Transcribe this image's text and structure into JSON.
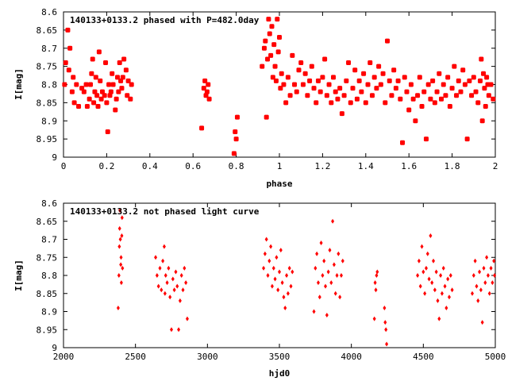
{
  "chart_data": [
    {
      "type": "scatter",
      "title": "140133+0133.2 phased with P=482.0day",
      "xlabel": "phase",
      "ylabel": "I[mag]",
      "xlim": [
        0,
        2
      ],
      "ylim": [
        8.6,
        9
      ],
      "y_inverted": true,
      "grid": false,
      "legend": "none",
      "marker_color": "#ff0000",
      "x_ticks": [
        "0",
        "0.2",
        "0.4",
        "0.6",
        "0.8",
        "1",
        "1.2",
        "1.4",
        "1.6",
        "1.8",
        "2"
      ],
      "y_ticks": [
        "8.6",
        "8.65",
        "8.7",
        "8.75",
        "8.8",
        "8.85",
        "8.9",
        "8.95",
        "9"
      ],
      "points": [
        [
          0.005,
          8.8
        ],
        [
          0.01,
          8.74
        ],
        [
          0.02,
          8.65
        ],
        [
          0.025,
          8.76
        ],
        [
          0.03,
          8.7
        ],
        [
          0.04,
          8.82
        ],
        [
          0.045,
          8.78
        ],
        [
          0.05,
          8.85
        ],
        [
          0.06,
          8.8
        ],
        [
          0.07,
          8.86
        ],
        [
          0.085,
          8.81
        ],
        [
          0.095,
          8.82
        ],
        [
          0.105,
          8.8
        ],
        [
          0.11,
          8.86
        ],
        [
          0.12,
          8.84
        ],
        [
          0.125,
          8.8
        ],
        [
          0.13,
          8.77
        ],
        [
          0.135,
          8.73
        ],
        [
          0.14,
          8.85
        ],
        [
          0.145,
          8.82
        ],
        [
          0.15,
          8.78
        ],
        [
          0.155,
          8.83
        ],
        [
          0.16,
          8.86
        ],
        [
          0.165,
          8.71
        ],
        [
          0.17,
          8.79
        ],
        [
          0.175,
          8.84
        ],
        [
          0.18,
          8.82
        ],
        [
          0.19,
          8.83
        ],
        [
          0.195,
          8.74
        ],
        [
          0.2,
          8.85
        ],
        [
          0.205,
          8.93
        ],
        [
          0.21,
          8.8
        ],
        [
          0.215,
          8.83
        ],
        [
          0.22,
          8.82
        ],
        [
          0.225,
          8.77
        ],
        [
          0.23,
          8.8
        ],
        [
          0.24,
          8.87
        ],
        [
          0.245,
          8.84
        ],
        [
          0.25,
          8.78
        ],
        [
          0.255,
          8.82
        ],
        [
          0.26,
          8.74
        ],
        [
          0.265,
          8.79
        ],
        [
          0.27,
          8.81
        ],
        [
          0.275,
          8.78
        ],
        [
          0.28,
          8.73
        ],
        [
          0.29,
          8.76
        ],
        [
          0.295,
          8.83
        ],
        [
          0.3,
          8.79
        ],
        [
          0.31,
          8.84
        ],
        [
          0.315,
          8.8
        ],
        [
          0.64,
          8.92
        ],
        [
          0.65,
          8.81
        ],
        [
          0.655,
          8.79
        ],
        [
          0.66,
          8.83
        ],
        [
          0.665,
          8.82
        ],
        [
          0.67,
          8.8
        ],
        [
          0.675,
          8.84
        ],
        [
          0.79,
          8.99
        ],
        [
          0.795,
          8.93
        ],
        [
          0.8,
          8.95
        ],
        [
          0.805,
          8.89
        ],
        [
          0.92,
          8.75
        ],
        [
          0.93,
          8.7
        ],
        [
          0.935,
          8.68
        ],
        [
          0.94,
          8.89
        ],
        [
          0.945,
          8.73
        ],
        [
          0.95,
          8.62
        ],
        [
          0.955,
          8.66
        ],
        [
          0.96,
          8.72
        ],
        [
          0.965,
          8.64
        ],
        [
          0.97,
          8.78
        ],
        [
          0.975,
          8.69
        ],
        [
          0.98,
          8.75
        ],
        [
          0.985,
          8.79
        ],
        [
          0.99,
          8.62
        ],
        [
          0.995,
          8.71
        ],
        [
          1.0,
          8.67
        ],
        [
          1.005,
          8.81
        ],
        [
          1.01,
          8.77
        ],
        [
          1.02,
          8.8
        ],
        [
          1.03,
          8.85
        ],
        [
          1.04,
          8.78
        ],
        [
          1.05,
          8.83
        ],
        [
          1.06,
          8.72
        ],
        [
          1.07,
          8.8
        ],
        [
          1.08,
          8.82
        ],
        [
          1.09,
          8.76
        ],
        [
          1.1,
          8.74
        ],
        [
          1.11,
          8.8
        ],
        [
          1.12,
          8.77
        ],
        [
          1.13,
          8.83
        ],
        [
          1.14,
          8.79
        ],
        [
          1.15,
          8.75
        ],
        [
          1.16,
          8.81
        ],
        [
          1.17,
          8.85
        ],
        [
          1.18,
          8.79
        ],
        [
          1.19,
          8.82
        ],
        [
          1.2,
          8.78
        ],
        [
          1.21,
          8.73
        ],
        [
          1.22,
          8.83
        ],
        [
          1.23,
          8.8
        ],
        [
          1.24,
          8.85
        ],
        [
          1.25,
          8.78
        ],
        [
          1.26,
          8.82
        ],
        [
          1.27,
          8.84
        ],
        [
          1.28,
          8.81
        ],
        [
          1.29,
          8.88
        ],
        [
          1.3,
          8.83
        ],
        [
          1.31,
          8.79
        ],
        [
          1.32,
          8.74
        ],
        [
          1.33,
          8.85
        ],
        [
          1.34,
          8.81
        ],
        [
          1.35,
          8.76
        ],
        [
          1.36,
          8.84
        ],
        [
          1.37,
          8.79
        ],
        [
          1.38,
          8.82
        ],
        [
          1.39,
          8.77
        ],
        [
          1.4,
          8.85
        ],
        [
          1.41,
          8.8
        ],
        [
          1.42,
          8.74
        ],
        [
          1.43,
          8.83
        ],
        [
          1.44,
          8.78
        ],
        [
          1.45,
          8.81
        ],
        [
          1.46,
          8.75
        ],
        [
          1.47,
          8.8
        ],
        [
          1.48,
          8.77
        ],
        [
          1.49,
          8.85
        ],
        [
          1.5,
          8.68
        ],
        [
          1.51,
          8.79
        ],
        [
          1.52,
          8.83
        ],
        [
          1.53,
          8.76
        ],
        [
          1.54,
          8.81
        ],
        [
          1.55,
          8.79
        ],
        [
          1.56,
          8.84
        ],
        [
          1.57,
          8.96
        ],
        [
          1.58,
          8.78
        ],
        [
          1.59,
          8.82
        ],
        [
          1.6,
          8.87
        ],
        [
          1.61,
          8.8
        ],
        [
          1.62,
          8.84
        ],
        [
          1.63,
          8.9
        ],
        [
          1.64,
          8.83
        ],
        [
          1.65,
          8.78
        ],
        [
          1.66,
          8.86
        ],
        [
          1.67,
          8.82
        ],
        [
          1.68,
          8.95
        ],
        [
          1.69,
          8.8
        ],
        [
          1.7,
          8.84
        ],
        [
          1.71,
          8.79
        ],
        [
          1.72,
          8.85
        ],
        [
          1.73,
          8.82
        ],
        [
          1.74,
          8.77
        ],
        [
          1.75,
          8.84
        ],
        [
          1.76,
          8.8
        ],
        [
          1.77,
          8.83
        ],
        [
          1.78,
          8.78
        ],
        [
          1.79,
          8.86
        ],
        [
          1.8,
          8.81
        ],
        [
          1.81,
          8.75
        ],
        [
          1.82,
          8.83
        ],
        [
          1.83,
          8.79
        ],
        [
          1.84,
          8.82
        ],
        [
          1.85,
          8.76
        ],
        [
          1.86,
          8.8
        ],
        [
          1.87,
          8.95
        ],
        [
          1.88,
          8.79
        ],
        [
          1.89,
          8.83
        ],
        [
          1.9,
          8.78
        ],
        [
          1.91,
          8.82
        ],
        [
          1.92,
          8.85
        ],
        [
          1.93,
          8.79
        ],
        [
          1.94,
          8.9
        ],
        [
          1.95,
          8.81
        ],
        [
          1.96,
          8.78
        ],
        [
          1.97,
          8.83
        ],
        [
          1.98,
          8.8
        ],
        [
          1.99,
          8.84
        ],
        [
          1.935,
          8.73
        ],
        [
          1.945,
          8.77
        ],
        [
          1.955,
          8.86
        ],
        [
          1.965,
          8.8
        ]
      ]
    },
    {
      "type": "scatter",
      "title": "140133+0133.2 not phased light curve",
      "xlabel": "hjd0",
      "ylabel": "I[mag]",
      "xlim": [
        2000,
        5000
      ],
      "ylim": [
        8.6,
        9
      ],
      "y_inverted": true,
      "grid": false,
      "legend": "none",
      "marker_color": "#ff0000",
      "x_ticks": [
        "2000",
        "2500",
        "3000",
        "3500",
        "4000",
        "4500",
        "5000"
      ],
      "y_ticks": [
        "8.6",
        "8.65",
        "8.7",
        "8.75",
        "8.8",
        "8.85",
        "8.9",
        "8.95",
        "9"
      ],
      "points": [
        [
          2380,
          8.89
        ],
        [
          2385,
          8.8
        ],
        [
          2388,
          8.72
        ],
        [
          2390,
          8.67
        ],
        [
          2392,
          8.62
        ],
        [
          2395,
          8.7
        ],
        [
          2398,
          8.77
        ],
        [
          2400,
          8.75
        ],
        [
          2402,
          8.82
        ],
        [
          2405,
          8.69
        ],
        [
          2407,
          8.64
        ],
        [
          2410,
          8.78
        ],
        [
          2640,
          8.75
        ],
        [
          2650,
          8.8
        ],
        [
          2660,
          8.83
        ],
        [
          2670,
          8.78
        ],
        [
          2680,
          8.84
        ],
        [
          2690,
          8.76
        ],
        [
          2700,
          8.72
        ],
        [
          2705,
          8.85
        ],
        [
          2710,
          8.8
        ],
        [
          2720,
          8.82
        ],
        [
          2730,
          8.78
        ],
        [
          2740,
          8.86
        ],
        [
          2750,
          8.95
        ],
        [
          2760,
          8.81
        ],
        [
          2770,
          8.84
        ],
        [
          2780,
          8.79
        ],
        [
          2790,
          8.83
        ],
        [
          2800,
          8.95
        ],
        [
          2810,
          8.87
        ],
        [
          2820,
          8.8
        ],
        [
          2830,
          8.84
        ],
        [
          2840,
          8.78
        ],
        [
          2850,
          8.82
        ],
        [
          2860,
          8.92
        ],
        [
          3390,
          8.78
        ],
        [
          3400,
          8.74
        ],
        [
          3410,
          8.7
        ],
        [
          3420,
          8.8
        ],
        [
          3430,
          8.76
        ],
        [
          3440,
          8.72
        ],
        [
          3450,
          8.83
        ],
        [
          3460,
          8.78
        ],
        [
          3470,
          8.81
        ],
        [
          3480,
          8.75
        ],
        [
          3490,
          8.84
        ],
        [
          3500,
          8.79
        ],
        [
          3510,
          8.73
        ],
        [
          3520,
          8.82
        ],
        [
          3530,
          8.86
        ],
        [
          3540,
          8.89
        ],
        [
          3550,
          8.8
        ],
        [
          3560,
          8.85
        ],
        [
          3570,
          8.78
        ],
        [
          3580,
          8.83
        ],
        [
          3590,
          8.79
        ],
        [
          3740,
          8.9
        ],
        [
          3750,
          8.78
        ],
        [
          3760,
          8.74
        ],
        [
          3770,
          8.82
        ],
        [
          3780,
          8.86
        ],
        [
          3790,
          8.71
        ],
        [
          3800,
          8.8
        ],
        [
          3810,
          8.76
        ],
        [
          3820,
          8.83
        ],
        [
          3830,
          8.91
        ],
        [
          3840,
          8.79
        ],
        [
          3850,
          8.73
        ],
        [
          3860,
          8.82
        ],
        [
          3870,
          8.65
        ],
        [
          3880,
          8.77
        ],
        [
          3890,
          8.85
        ],
        [
          3900,
          8.8
        ],
        [
          3910,
          8.74
        ],
        [
          3920,
          8.86
        ],
        [
          3930,
          8.8
        ],
        [
          3940,
          8.76
        ],
        [
          4160,
          8.92
        ],
        [
          4165,
          8.82
        ],
        [
          4170,
          8.84
        ],
        [
          4175,
          8.8
        ],
        [
          4180,
          8.79
        ],
        [
          4230,
          8.89
        ],
        [
          4235,
          8.93
        ],
        [
          4240,
          8.95
        ],
        [
          4245,
          8.99
        ],
        [
          4460,
          8.8
        ],
        [
          4470,
          8.76
        ],
        [
          4480,
          8.83
        ],
        [
          4490,
          8.72
        ],
        [
          4500,
          8.79
        ],
        [
          4510,
          8.85
        ],
        [
          4520,
          8.78
        ],
        [
          4530,
          8.74
        ],
        [
          4540,
          8.81
        ],
        [
          4550,
          8.69
        ],
        [
          4560,
          8.82
        ],
        [
          4570,
          8.76
        ],
        [
          4580,
          8.84
        ],
        [
          4590,
          8.79
        ],
        [
          4600,
          8.87
        ],
        [
          4610,
          8.92
        ],
        [
          4620,
          8.8
        ],
        [
          4630,
          8.85
        ],
        [
          4640,
          8.78
        ],
        [
          4650,
          8.83
        ],
        [
          4660,
          8.89
        ],
        [
          4670,
          8.81
        ],
        [
          4680,
          8.86
        ],
        [
          4690,
          8.8
        ],
        [
          4700,
          8.84
        ],
        [
          4840,
          8.85
        ],
        [
          4850,
          8.8
        ],
        [
          4860,
          8.76
        ],
        [
          4870,
          8.83
        ],
        [
          4880,
          8.87
        ],
        [
          4890,
          8.79
        ],
        [
          4900,
          8.84
        ],
        [
          4910,
          8.93
        ],
        [
          4920,
          8.78
        ],
        [
          4930,
          8.82
        ],
        [
          4940,
          8.75
        ],
        [
          4950,
          8.8
        ],
        [
          4960,
          8.85
        ],
        [
          4970,
          8.78
        ],
        [
          4980,
          8.82
        ],
        [
          4990,
          8.76
        ],
        [
          4995,
          8.8
        ]
      ]
    }
  ]
}
